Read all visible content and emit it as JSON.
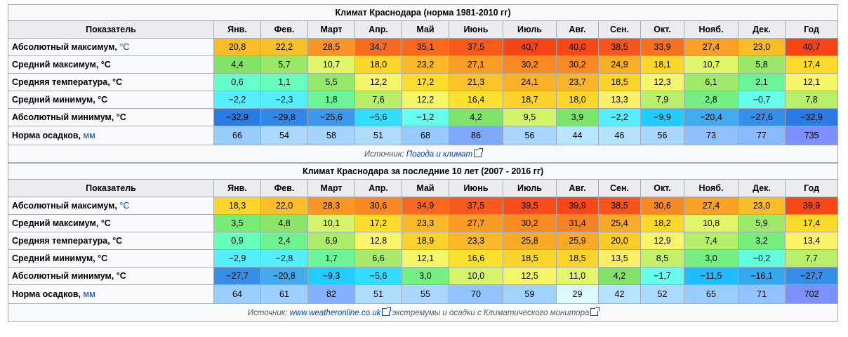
{
  "tables": [
    {
      "caption": "Климат Краснодара (норма 1981-2010 гг)",
      "header": {
        "param": "Показатель",
        "months": [
          "Янв.",
          "Фев.",
          "Март",
          "Апр.",
          "Май",
          "Июнь",
          "Июль",
          "Авг.",
          "Сен.",
          "Окт.",
          "Нояб.",
          "Дек."
        ],
        "year": "Год"
      },
      "rows": [
        {
          "label": "Абсолютный максимум,",
          "unit": "°C",
          "unit_link": true,
          "values": [
            "20,8",
            "22,2",
            "28,5",
            "34,7",
            "35,1",
            "37,5",
            "40,7",
            "40,0",
            "38,5",
            "33,9",
            "27,4",
            "23,0",
            "40,7"
          ],
          "colors": [
            "#f9bb28",
            "#f9bf28",
            "#f99524",
            "#f86a1f",
            "#f8681f",
            "#f85a1e",
            "#f74417",
            "#f74817",
            "#f8541d",
            "#f9711f",
            "#f9a126",
            "#f9bb28",
            "#f74417"
          ]
        },
        {
          "label": "Средний максимум, °C",
          "unit": "",
          "unit_link": false,
          "values": [
            "4,4",
            "5,7",
            "10,7",
            "18,0",
            "23,2",
            "27,1",
            "30,2",
            "30,2",
            "24,9",
            "18,1",
            "10,7",
            "5,8",
            "17,4"
          ],
          "colors": [
            "#82e369",
            "#9ae869",
            "#e0f66a",
            "#fbd72b",
            "#fbb828",
            "#f99e25",
            "#f88a23",
            "#f88a23",
            "#f9ae27",
            "#fbd72b",
            "#e0f66a",
            "#9ae869",
            "#fbda2c"
          ]
        },
        {
          "label": "Средняя температура, °C",
          "unit": "",
          "unit_link": false,
          "values": [
            "0,6",
            "1,1",
            "5,5",
            "12,2",
            "17,2",
            "21,3",
            "24,1",
            "23,7",
            "18,5",
            "12,3",
            "6,1",
            "2,1",
            "12,1"
          ],
          "colors": [
            "#66ffcc",
            "#66ffbb",
            "#96e86a",
            "#f5f56a",
            "#fcdc2d",
            "#fbc42a",
            "#fab228",
            "#fbb528",
            "#fbd42b",
            "#f5f56a",
            "#a0e96a",
            "#6cf598",
            "#f5f56a"
          ]
        },
        {
          "label": "Средний минимум, °C",
          "unit": "",
          "unit_link": false,
          "values": [
            "−2,2",
            "−2,3",
            "1,8",
            "7,6",
            "12,2",
            "16,4",
            "18,7",
            "18,0",
            "13,3",
            "7,9",
            "2,8",
            "−0,7",
            "7,8"
          ],
          "colors": [
            "#55eeff",
            "#55eeff",
            "#6cf598",
            "#b6ee6a",
            "#f5f56a",
            "#fce12e",
            "#fbd22b",
            "#fbd72b",
            "#fbf06a",
            "#b9ef6a",
            "#74ef82",
            "#66ffee",
            "#b8ef6a"
          ]
        },
        {
          "label": "Абсолютный минимум, °C",
          "unit": "",
          "unit_link": false,
          "values": [
            "−32,9",
            "−29,8",
            "−25,6",
            "−5,6",
            "−1,2",
            "4,2",
            "9,5",
            "3,9",
            "−2,2",
            "−9,9",
            "−20,4",
            "−27,6",
            "−32,9"
          ],
          "colors": [
            "#2a7be4",
            "#3387e7",
            "#3d97ea",
            "#33ddff",
            "#66ffee",
            "#80e269",
            "#d2f36a",
            "#7ce569",
            "#55eeff",
            "#22ccff",
            "#44aaee",
            "#378ee8",
            "#2a7be4"
          ]
        }
      ],
      "precip": {
        "label": "Норма осадков,",
        "unit": "мм",
        "values": [
          "66",
          "54",
          "58",
          "51",
          "68",
          "86",
          "56",
          "44",
          "46",
          "56",
          "73",
          "77",
          "735"
        ],
        "colors": [
          "#99ccff",
          "#aad8ff",
          "#a6d4ff",
          "#aedcff",
          "#97caff",
          "#7fa8ff",
          "#a8d6ff",
          "#b8e6ff",
          "#b4e2ff",
          "#a8d6ff",
          "#90c0ff",
          "#8cbaff",
          "#7d90ff"
        ]
      },
      "source_prefix": "Источник: ",
      "source_link": "Погода и климат",
      "source_suffix": ""
    },
    {
      "caption": "Климат Краснодара за последние 10 лет (2007 - 2016 гг)",
      "header": {
        "param": "Показатель",
        "months": [
          "Янв.",
          "Фев.",
          "Март",
          "Апр.",
          "Май",
          "Июнь",
          "Июль",
          "Авг.",
          "Сен.",
          "Окт.",
          "Нояб.",
          "Дек."
        ],
        "year": "Год"
      },
      "rows": [
        {
          "label": "Абсолютный максимум,",
          "unit": "°C",
          "unit_link": true,
          "values": [
            "18,3",
            "22,0",
            "28,3",
            "30,6",
            "34,9",
            "37,5",
            "39,5",
            "39,9",
            "38,5",
            "30,6",
            "27,4",
            "23,0",
            "39,9"
          ],
          "colors": [
            "#fbd52b",
            "#f9bf28",
            "#f99624",
            "#f98723",
            "#f8691f",
            "#f85a1e",
            "#f84e1b",
            "#f74817",
            "#f8541d",
            "#f98723",
            "#f9a126",
            "#f9bb28",
            "#f74817"
          ]
        },
        {
          "label": "Средний максимум, °C",
          "unit": "",
          "unit_link": false,
          "values": [
            "3,5",
            "4,8",
            "10,1",
            "17,2",
            "23,3",
            "27,7",
            "30,2",
            "31,4",
            "25,4",
            "18,2",
            "10,8",
            "5,9",
            "17,4"
          ],
          "colors": [
            "#78ec76",
            "#8ce469",
            "#d6f46a",
            "#fcdc2d",
            "#fbb828",
            "#f99b25",
            "#f88a23",
            "#f88223",
            "#f9ab27",
            "#fbd72b",
            "#e2f66a",
            "#9ce869",
            "#fbda2c"
          ]
        },
        {
          "label": "Средняя температура, °C",
          "unit": "",
          "unit_link": false,
          "values": [
            "0,9",
            "2,4",
            "6,9",
            "12,8",
            "18,9",
            "23,3",
            "25,8",
            "25,9",
            "20,0",
            "12,9",
            "7,4",
            "3,2",
            "13,4"
          ],
          "colors": [
            "#66ffbb",
            "#6ef390",
            "#acec6a",
            "#f8f56a",
            "#fbd12b",
            "#fbb828",
            "#f9a926",
            "#f9a926",
            "#fbcb2a",
            "#f9f56a",
            "#b4ee6a",
            "#76ee7e",
            "#fbf26a"
          ]
        },
        {
          "label": "Средний минимум, °C",
          "unit": "",
          "unit_link": false,
          "values": [
            "−2,9",
            "−2,8",
            "1,7",
            "6,6",
            "12,1",
            "16,6",
            "18,5",
            "18,5",
            "13,5",
            "8,5",
            "3,0",
            "−0,2",
            "7,7"
          ],
          "colors": [
            "#55eeff",
            "#55eeff",
            "#6cf598",
            "#a8ea6a",
            "#f5f56a",
            "#fce02e",
            "#fbd42b",
            "#fbd42b",
            "#fbef6a",
            "#c2f16a",
            "#74ef82",
            "#66ffdd",
            "#b7ef6a"
          ]
        },
        {
          "label": "Абсолютный минимум, °C",
          "unit": "",
          "unit_link": false,
          "values": [
            "−27,7",
            "−20,8",
            "−9,3",
            "−5,6",
            "3,0",
            "10,0",
            "12,5",
            "11,0",
            "4,2",
            "−1,7",
            "−11,5",
            "−16,1",
            "−27,7"
          ],
          "colors": [
            "#378ee8",
            "#44aaee",
            "#22ccff",
            "#33ddff",
            "#74ef82",
            "#d8f46a",
            "#f5f56a",
            "#e6f66a",
            "#80e269",
            "#66ffee",
            "#22bbff",
            "#33aaee",
            "#378ee8"
          ]
        }
      ],
      "precip": {
        "label": "Норма осадков,",
        "unit": "мм",
        "values": [
          "64",
          "61",
          "82",
          "51",
          "55",
          "70",
          "59",
          "29",
          "42",
          "52",
          "65",
          "71",
          "702"
        ],
        "colors": [
          "#9aceff",
          "#9ed0ff",
          "#84b0ff",
          "#aedcff",
          "#a9d7ff",
          "#93c4ff",
          "#a2d2ff",
          "#ddf8ff",
          "#b6e4ff",
          "#acdaff",
          "#9acdff",
          "#92c2ff",
          "#7d90ff"
        ]
      },
      "source_prefix": "Источник: ",
      "source_link": "www.weatheronline.co.uk",
      "source_suffix": " экстремумы и осадки с Климатического монитора"
    }
  ]
}
